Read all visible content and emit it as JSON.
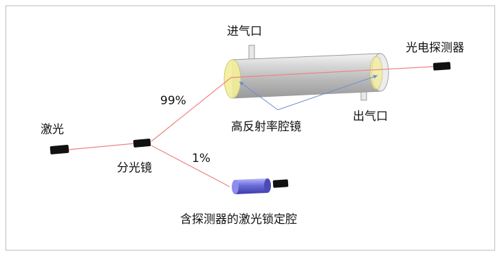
{
  "labels": {
    "inlet": "进气口",
    "detector": "光电探测器",
    "laser": "激光",
    "beam_splitter": "分光镜",
    "ratio_high": "99%",
    "ratio_low": "1%",
    "mirrors": "高反射率腔镜",
    "outlet": "出气口",
    "locked_cavity": "含探测器的激光锁定腔"
  },
  "colors": {
    "beam": "#f08080",
    "arrow": "#6a8fd0",
    "component": "#111111",
    "tube": "#c8c8c8",
    "mirror": "#f3ef9a",
    "locked_cavity": "#6b6bd8",
    "border": "#bdbdbd"
  }
}
